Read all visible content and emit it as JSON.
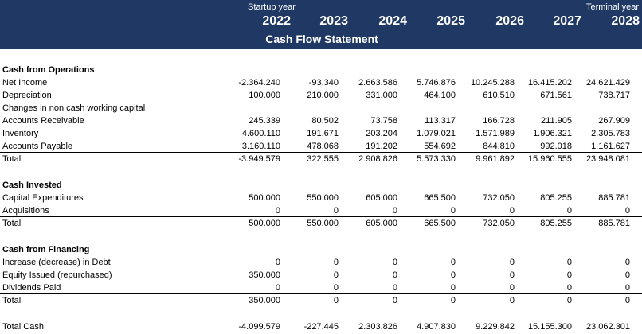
{
  "header": {
    "startup_label": "Startup year",
    "terminal_label": "Terminal year",
    "years": [
      "2022",
      "2023",
      "2024",
      "2025",
      "2026",
      "2027",
      "2028"
    ],
    "title": "Cash Flow Statement"
  },
  "sections": [
    {
      "title": "Cash from Operations",
      "rows": [
        {
          "label": "Net Income",
          "values": [
            "-2.364.240",
            "-93.340",
            "2.663.586",
            "5.746.876",
            "10.245.288",
            "16.415.202",
            "24.621.429"
          ]
        },
        {
          "label": "Depreciation",
          "values": [
            "100.000",
            "210.000",
            "331.000",
            "464.100",
            "610.510",
            "671.561",
            "738.717"
          ]
        },
        {
          "label": "Changes in non cash working capital",
          "values": [
            "",
            "",
            "",
            "",
            "",
            "",
            ""
          ]
        },
        {
          "label": "Accounts Receivable",
          "values": [
            "245.339",
            "80.502",
            "73.758",
            "113.317",
            "166.728",
            "211.905",
            "267.909"
          ]
        },
        {
          "label": "Inventory",
          "values": [
            "4.600.110",
            "191.671",
            "203.204",
            "1.079.021",
            "1.571.989",
            "1.906.321",
            "2.305.783"
          ]
        },
        {
          "label": "Accounts Payable",
          "values": [
            "3.160.110",
            "478.068",
            "191.202",
            "554.692",
            "844.810",
            "992.018",
            "1.161.627"
          ]
        }
      ],
      "total": {
        "label": "Total",
        "values": [
          "-3.949.579",
          "322.555",
          "2.908.826",
          "5.573.330",
          "9.961.892",
          "15.960.555",
          "23.948.081"
        ]
      }
    },
    {
      "title": "Cash Invested",
      "rows": [
        {
          "label": "Capital Expenditures",
          "values": [
            "500.000",
            "550.000",
            "605.000",
            "665.500",
            "732.050",
            "805.255",
            "885.781"
          ]
        },
        {
          "label": "Acquisitions",
          "values": [
            "0",
            "0",
            "0",
            "0",
            "0",
            "0",
            "0"
          ]
        }
      ],
      "total": {
        "label": "Total",
        "values": [
          "500.000",
          "550.000",
          "605.000",
          "665.500",
          "732.050",
          "805.255",
          "885.781"
        ]
      }
    },
    {
      "title": "Cash from Financing",
      "rows": [
        {
          "label": "Increase (decrease) in Debt",
          "values": [
            "0",
            "0",
            "0",
            "0",
            "0",
            "0",
            "0"
          ]
        },
        {
          "label": "Equity Issued (repurchased)",
          "values": [
            "350.000",
            "0",
            "0",
            "0",
            "0",
            "0",
            "0"
          ]
        },
        {
          "label": "Dividends Paid",
          "values": [
            "0",
            "0",
            "0",
            "0",
            "0",
            "0",
            "0"
          ]
        }
      ],
      "total": {
        "label": "Total",
        "values": [
          "350.000",
          "0",
          "0",
          "0",
          "0",
          "0",
          "0"
        ]
      }
    }
  ],
  "total_cash": {
    "label": "Total Cash",
    "values": [
      "-4.099.579",
      "-227.445",
      "2.303.826",
      "4.907.830",
      "9.229.842",
      "15.155.300",
      "23.062.301"
    ]
  },
  "colors": {
    "header_bg": "#1f3864",
    "header_text": "#ffffff"
  }
}
